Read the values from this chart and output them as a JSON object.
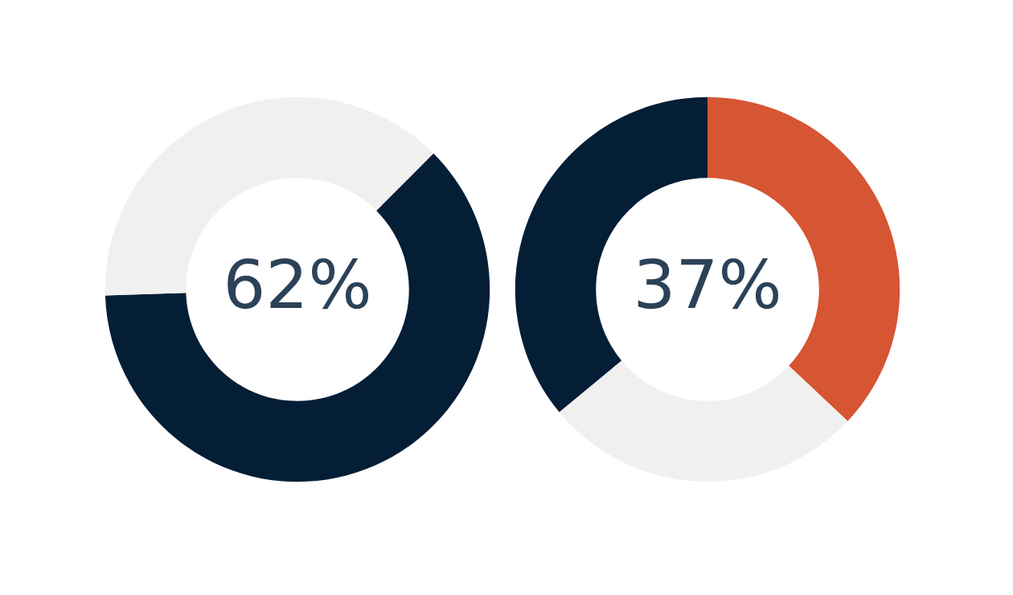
{
  "chart_data": [
    {
      "type": "donut",
      "categories": [
        null,
        null
      ],
      "values": [
        62,
        38
      ],
      "colors": [
        "#041e36",
        "#f0f0f0"
      ],
      "annotations": [
        "62%"
      ]
    },
    {
      "type": "donut",
      "categories": [
        null,
        null,
        null
      ],
      "values": [
        37,
        27,
        36
      ],
      "colors": [
        "#d65533",
        "#f0f0f0",
        "#041e36"
      ],
      "annotations": [
        "37%"
      ]
    }
  ]
}
